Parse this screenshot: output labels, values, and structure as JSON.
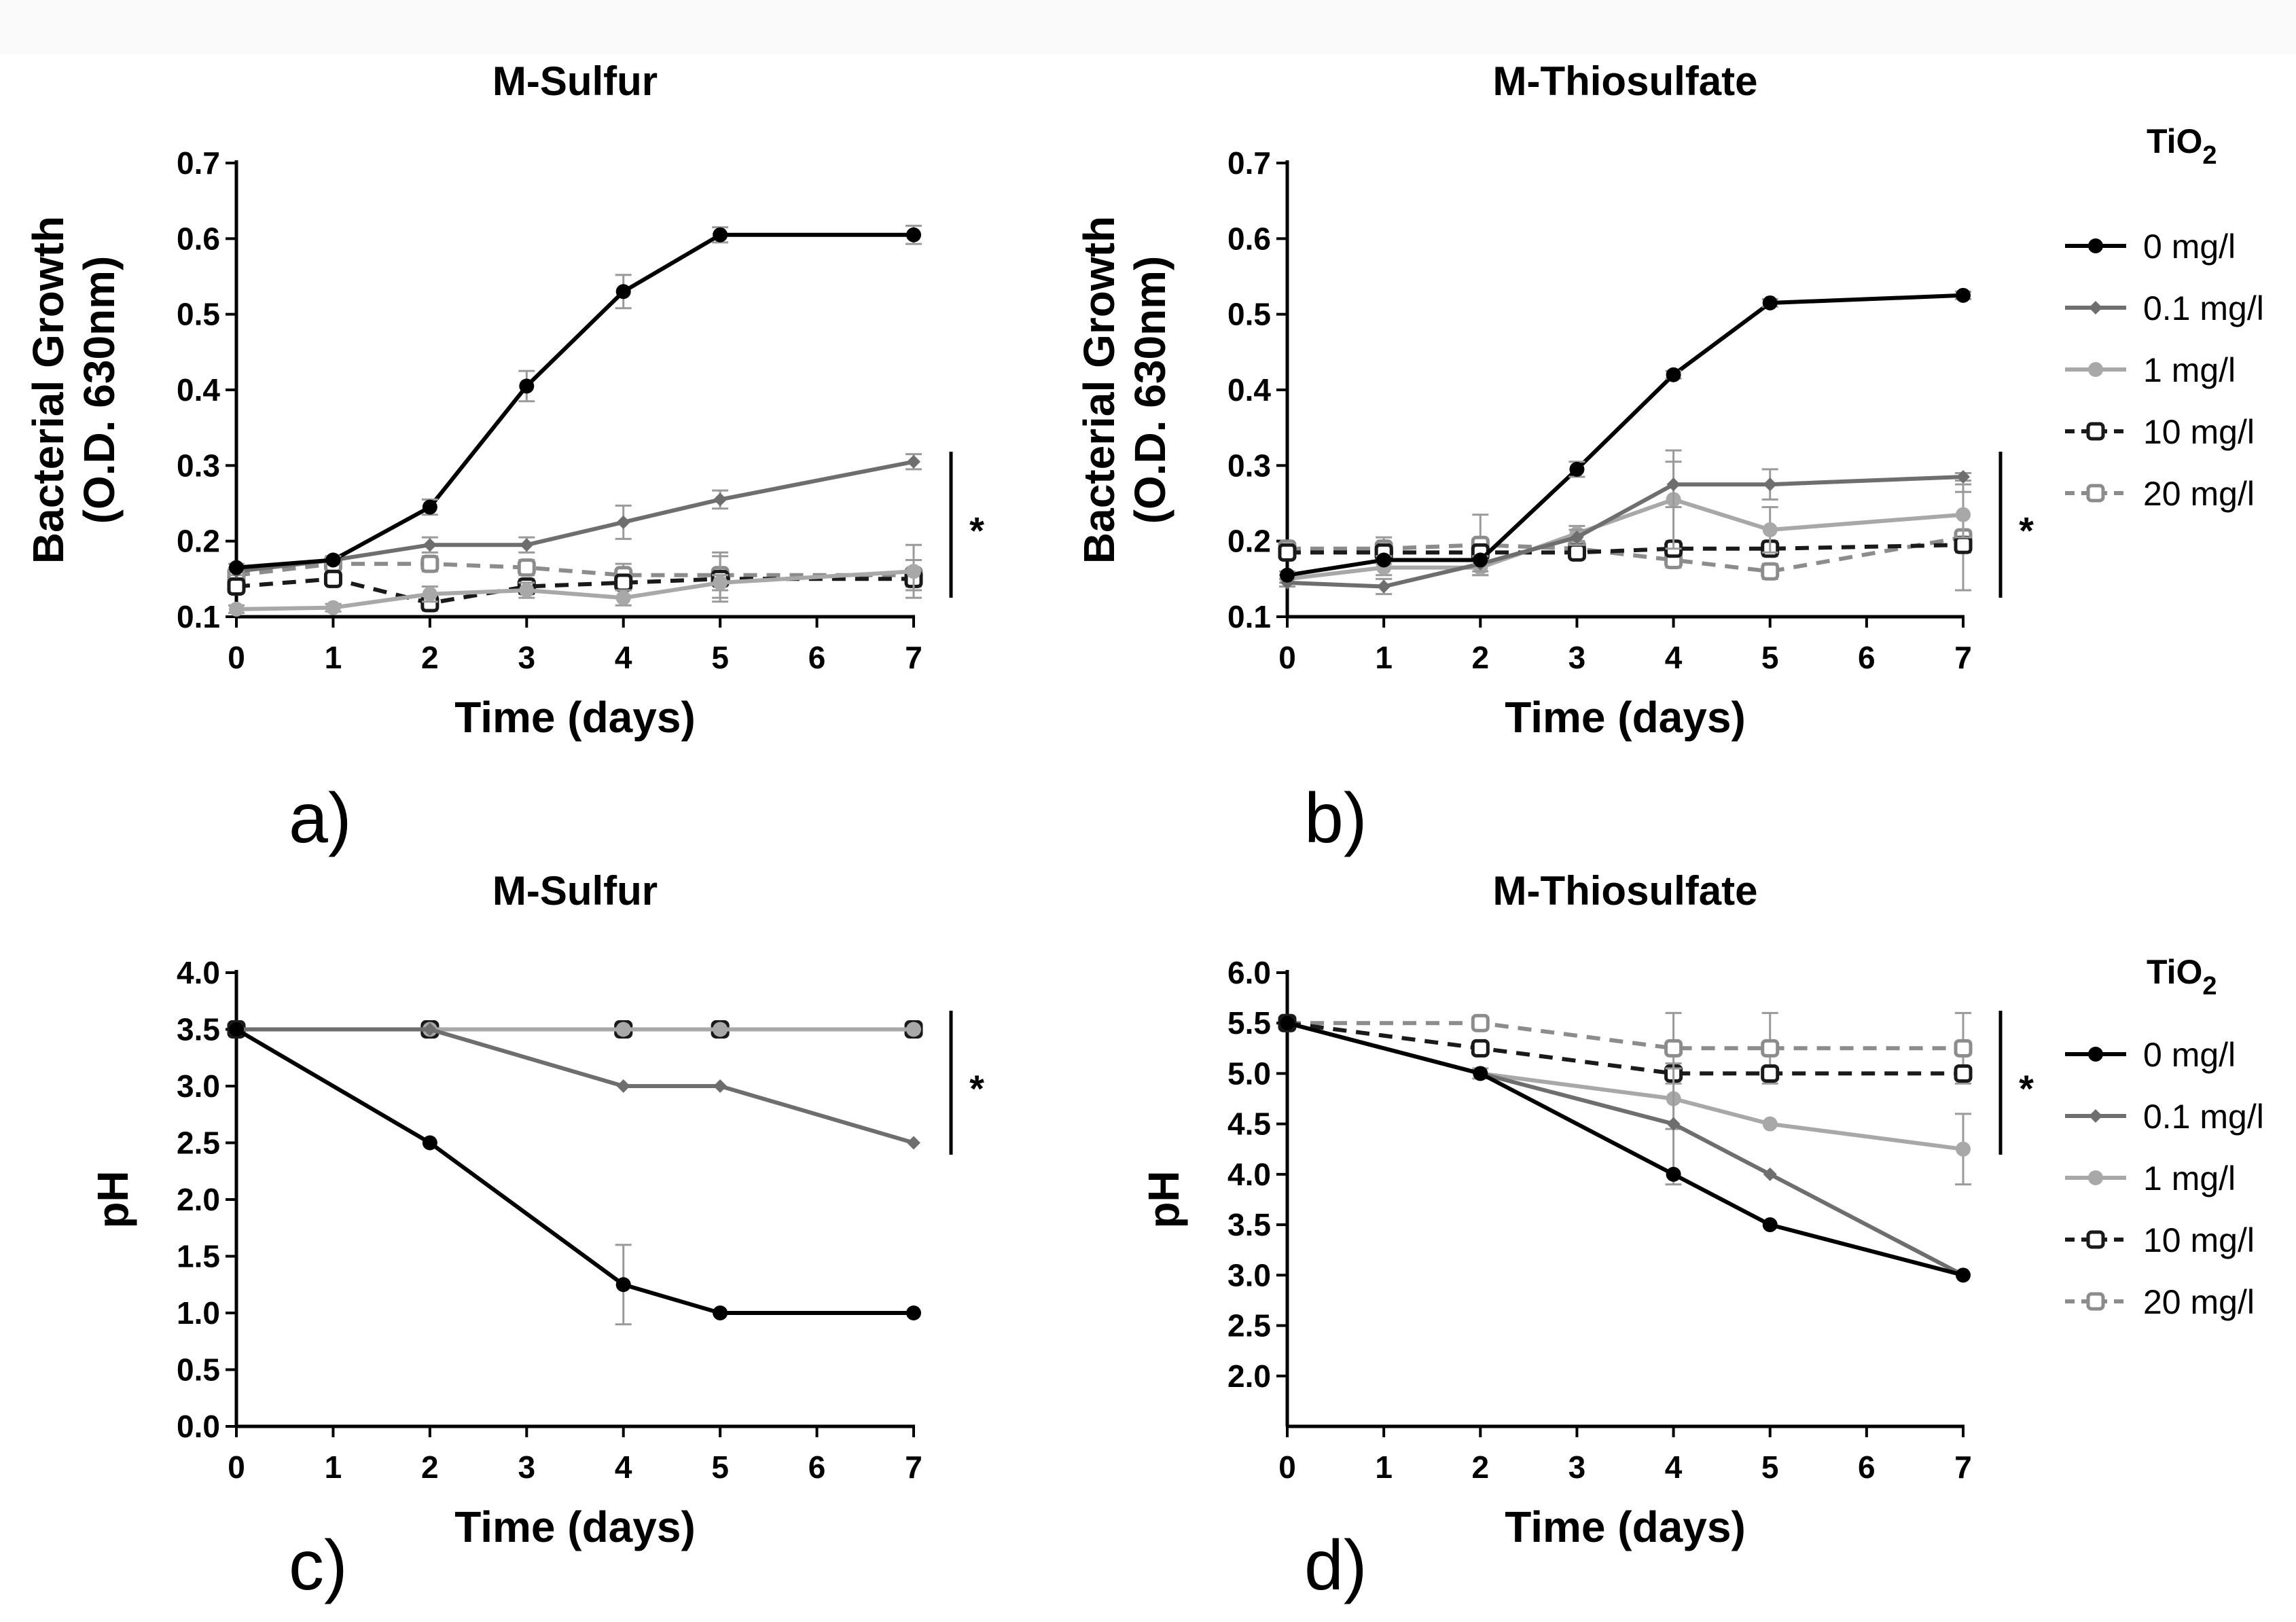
{
  "legend": {
    "title": "TiO",
    "title_sub": "2",
    "entries": [
      "0 mg/l",
      "0.1 mg/l",
      "1 mg/l",
      "10 mg/l",
      "20 mg/l"
    ]
  },
  "series_styles": [
    {
      "name": "0 mg/l",
      "color": "#000000",
      "dash": "solid",
      "marker": "filled-circle"
    },
    {
      "name": "0.1 mg/l",
      "color": "#6e6e6e",
      "dash": "solid",
      "marker": "diamond"
    },
    {
      "name": "1 mg/l",
      "color": "#a8a8a8",
      "dash": "solid",
      "marker": "filled-circle"
    },
    {
      "name": "10 mg/l",
      "color": "#1a1a1a",
      "dash": "dashed",
      "marker": "open-square"
    },
    {
      "name": "20 mg/l",
      "color": "#8c8c8c",
      "dash": "dashed",
      "marker": "open-square"
    }
  ],
  "chart_data": [
    {
      "panel": "a)",
      "type": "line",
      "title": "M-Sulfur",
      "xlabel": "Time (days)",
      "ylabel": [
        "Bacterial Growth",
        "(O.D. 630nm)"
      ],
      "xlim": [
        0,
        7
      ],
      "ylim": [
        0.1,
        0.7
      ],
      "xticks": [
        0,
        1,
        2,
        3,
        4,
        5,
        6,
        7
      ],
      "yticks": [
        "0.1",
        "0.2",
        "0.3",
        "0.4",
        "0.5",
        "0.6",
        "0.7"
      ],
      "significance": "*",
      "series": [
        {
          "name": "0 mg/l",
          "x": [
            0,
            1,
            2,
            3,
            4,
            5,
            7
          ],
          "values": [
            0.165,
            0.175,
            0.245,
            0.405,
            0.53,
            0.605,
            0.605
          ],
          "err": [
            0.005,
            0.005,
            0.01,
            0.02,
            0.022,
            0.01,
            0.012
          ]
        },
        {
          "name": "0.1 mg/l",
          "x": [
            0,
            1,
            2,
            3,
            4,
            5,
            7
          ],
          "values": [
            0.16,
            0.175,
            0.195,
            0.195,
            0.225,
            0.255,
            0.305
          ],
          "err": [
            0.005,
            0.005,
            0.01,
            0.01,
            0.022,
            0.012,
            0.01
          ]
        },
        {
          "name": "1 mg/l",
          "x": [
            0,
            1,
            2,
            3,
            4,
            5,
            7
          ],
          "values": [
            0.11,
            0.112,
            0.13,
            0.135,
            0.125,
            0.145,
            0.16
          ],
          "err": [
            0.005,
            0.005,
            0.01,
            0.01,
            0.01,
            0.01,
            0.035
          ]
        },
        {
          "name": "10 mg/l",
          "x": [
            0,
            1,
            2,
            3,
            4,
            5,
            7
          ],
          "values": [
            0.14,
            0.15,
            0.118,
            0.14,
            0.145,
            0.15,
            0.15
          ],
          "err": [
            0.005,
            0.005,
            0.01,
            0.01,
            0.01,
            0.03,
            0.01
          ]
        },
        {
          "name": "20 mg/l",
          "x": [
            0,
            1,
            2,
            3,
            4,
            5,
            7
          ],
          "values": [
            0.155,
            0.17,
            0.17,
            0.165,
            0.155,
            0.155,
            0.155
          ],
          "err": [
            0.005,
            0.005,
            0.01,
            0.01,
            0.015,
            0.03,
            0.02
          ]
        }
      ]
    },
    {
      "panel": "b)",
      "type": "line",
      "title": "M-Thiosulfate",
      "xlabel": "Time (days)",
      "ylabel": [
        "Bacterial Growth",
        "(O.D. 630nm)"
      ],
      "xlim": [
        0,
        7
      ],
      "ylim": [
        0.1,
        0.7
      ],
      "xticks": [
        0,
        1,
        2,
        3,
        4,
        5,
        6,
        7
      ],
      "yticks": [
        "0.1",
        "0.2",
        "0.3",
        "0.4",
        "0.5",
        "0.6",
        "0.7"
      ],
      "significance": "*",
      "series": [
        {
          "name": "0 mg/l",
          "x": [
            0,
            1,
            2,
            3,
            4,
            5,
            7
          ],
          "values": [
            0.155,
            0.175,
            0.175,
            0.295,
            0.42,
            0.515,
            0.525
          ],
          "err": [
            0.005,
            0.005,
            0.005,
            0.01,
            0.005,
            0.005,
            0.005
          ]
        },
        {
          "name": "0.1 mg/l",
          "x": [
            0,
            1,
            2,
            3,
            4,
            5,
            7
          ],
          "values": [
            0.145,
            0.14,
            0.17,
            0.205,
            0.275,
            0.275,
            0.285
          ],
          "err": [
            0.005,
            0.01,
            0.01,
            0.01,
            0.03,
            0.02,
            0.005
          ]
        },
        {
          "name": "1 mg/l",
          "x": [
            0,
            1,
            2,
            3,
            4,
            5,
            7
          ],
          "values": [
            0.15,
            0.165,
            0.165,
            0.21,
            0.255,
            0.215,
            0.235
          ],
          "err": [
            0.005,
            0.01,
            0.01,
            0.01,
            0.065,
            0.03,
            0.03
          ]
        },
        {
          "name": "10 mg/l",
          "x": [
            0,
            1,
            2,
            3,
            4,
            5,
            7
          ],
          "values": [
            0.185,
            0.185,
            0.185,
            0.185,
            0.19,
            0.19,
            0.195
          ],
          "err": [
            0.005,
            0.005,
            0.005,
            0.005,
            0.01,
            0.01,
            0.01
          ]
        },
        {
          "name": "20 mg/l",
          "x": [
            0,
            1,
            2,
            3,
            4,
            5,
            7
          ],
          "values": [
            0.19,
            0.19,
            0.195,
            0.19,
            0.175,
            0.16,
            0.205
          ],
          "err": [
            0.005,
            0.015,
            0.04,
            0.01,
            0.01,
            0.01,
            0.07
          ]
        }
      ]
    },
    {
      "panel": "c)",
      "type": "line",
      "title": "M-Sulfur",
      "xlabel": "Time (days)",
      "ylabel": [
        "pH"
      ],
      "xlim": [
        0,
        7
      ],
      "ylim": [
        0.0,
        4.0
      ],
      "xticks": [
        0,
        1,
        2,
        3,
        4,
        5,
        6,
        7
      ],
      "yticks": [
        "0.0",
        "0.5",
        "1.0",
        "1.5",
        "2.0",
        "2.5",
        "3.0",
        "3.5",
        "4.0"
      ],
      "significance": "*",
      "series": [
        {
          "name": "0 mg/l",
          "x": [
            0,
            2,
            4,
            5,
            7
          ],
          "values": [
            3.5,
            2.5,
            1.25,
            1.0,
            1.0
          ],
          "err": [
            0,
            0,
            0.35,
            0,
            0
          ]
        },
        {
          "name": "0.1 mg/l",
          "x": [
            0,
            2,
            4,
            5,
            7
          ],
          "values": [
            3.5,
            3.5,
            3.0,
            3.0,
            2.5
          ],
          "err": [
            0,
            0,
            0,
            0,
            0
          ]
        },
        {
          "name": "1 mg/l",
          "x": [
            0,
            2,
            4,
            5,
            7
          ],
          "values": [
            3.5,
            3.5,
            3.5,
            3.5,
            3.5
          ],
          "err": [
            0,
            0,
            0,
            0,
            0
          ]
        },
        {
          "name": "10 mg/l",
          "x": [
            0,
            2,
            4,
            5,
            7
          ],
          "values": [
            3.5,
            3.5,
            3.5,
            3.5,
            3.5
          ],
          "err": [
            0,
            0,
            0,
            0,
            0
          ]
        },
        {
          "name": "20 mg/l",
          "x": [
            0,
            2,
            4,
            5,
            7
          ],
          "values": [
            3.5,
            3.5,
            3.5,
            3.5,
            3.5
          ],
          "err": [
            0,
            0,
            0,
            0,
            0
          ]
        }
      ]
    },
    {
      "panel": "d)",
      "type": "line",
      "title": "M-Thiosulfate",
      "xlabel": "Time (days)",
      "ylabel": [
        "pH"
      ],
      "xlim": [
        0,
        7
      ],
      "ylim": [
        1.5,
        6.0
      ],
      "xticks": [
        0,
        1,
        2,
        3,
        4,
        5,
        6,
        7
      ],
      "yticks": [
        "2.0",
        "2.5",
        "3.0",
        "3.5",
        "4.0",
        "4.5",
        "5.0",
        "5.5",
        "6.0"
      ],
      "significance": "*",
      "series": [
        {
          "name": "0 mg/l",
          "x": [
            0,
            2,
            4,
            5,
            7
          ],
          "values": [
            5.5,
            5.0,
            4.0,
            3.5,
            3.0
          ],
          "err": [
            0,
            0,
            0,
            0,
            0
          ]
        },
        {
          "name": "0.1 mg/l",
          "x": [
            0,
            2,
            4,
            5,
            7
          ],
          "values": [
            5.5,
            5.0,
            4.5,
            4.0,
            3.0
          ],
          "err": [
            0,
            0.05,
            0.6,
            0,
            0
          ]
        },
        {
          "name": "1 mg/l",
          "x": [
            0,
            2,
            4,
            5,
            7
          ],
          "values": [
            5.5,
            5.0,
            4.75,
            4.5,
            4.25
          ],
          "err": [
            0,
            0,
            0.3,
            0,
            0.35
          ]
        },
        {
          "name": "10 mg/l",
          "x": [
            0,
            2,
            4,
            5,
            7
          ],
          "values": [
            5.5,
            5.25,
            5.0,
            5.0,
            5.0
          ],
          "err": [
            0,
            0,
            0,
            0,
            0
          ]
        },
        {
          "name": "20 mg/l",
          "x": [
            0,
            2,
            4,
            5,
            7
          ],
          "values": [
            5.5,
            5.5,
            5.25,
            5.25,
            5.25
          ],
          "err": [
            0,
            0,
            0.35,
            0.35,
            0.35
          ]
        }
      ]
    }
  ]
}
